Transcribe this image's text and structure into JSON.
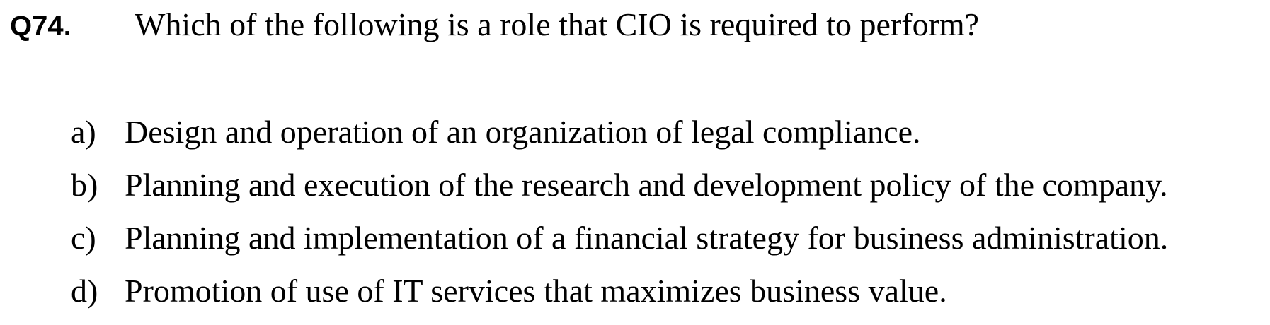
{
  "question": {
    "number": "Q74.",
    "text": "Which of the following is a role that CIO is required to perform?"
  },
  "options": [
    {
      "letter": "a)",
      "text": "Design and operation of an organization of legal compliance."
    },
    {
      "letter": "b)",
      "text": "Planning and execution of the research and development policy of the company."
    },
    {
      "letter": "c)",
      "text": "Planning and implementation of a financial strategy for business administration."
    },
    {
      "letter": "d)",
      "text": "Promotion of use of IT services that maximizes business value."
    }
  ]
}
